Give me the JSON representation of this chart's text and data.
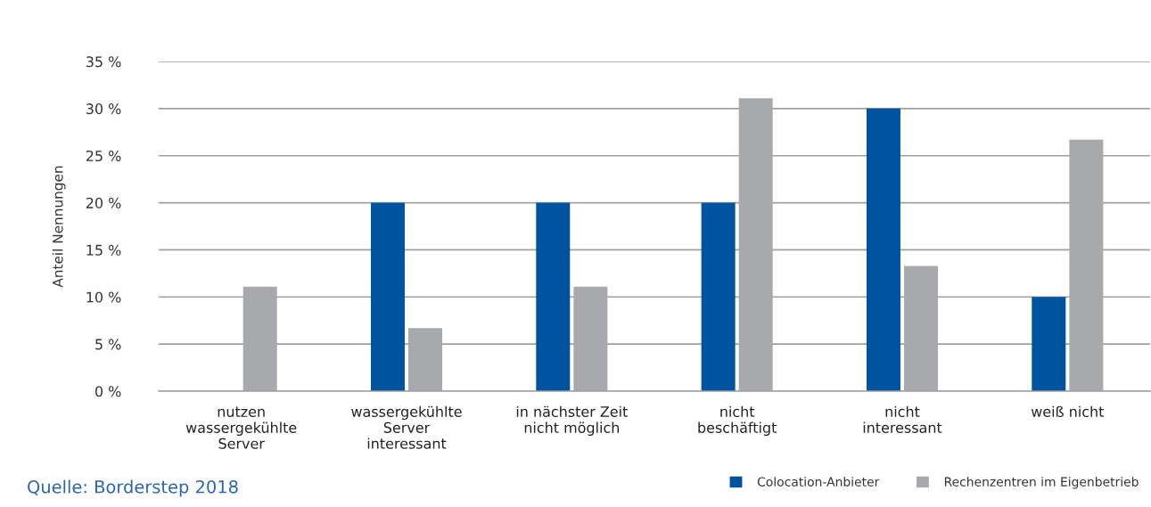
{
  "chart_data": {
    "type": "bar",
    "categories": [
      "nutzen\nwassergekühlte\nServer",
      "wassergekühlte\nServer\ninteressant",
      "in nächster Zeit\nnicht möglich",
      "nicht\nbeschäftigt",
      "nicht\ninteressant",
      "weiß nicht"
    ],
    "series": [
      {
        "name": "Colocation-Anbieter",
        "color": "#00539f",
        "values": [
          0,
          20,
          20,
          20,
          30,
          10
        ]
      },
      {
        "name": "Rechenzentren im Eigenbetrieb",
        "color": "#a8a9ad",
        "values": [
          11.1,
          6.7,
          11.1,
          31.1,
          13.3,
          26.7
        ]
      }
    ],
    "ylabel": "Anteil Nennungen",
    "ylim": [
      0,
      35
    ],
    "yticks": [
      {
        "value": 0,
        "label": "0 %"
      },
      {
        "value": 5,
        "label": "5 %"
      },
      {
        "value": 10,
        "label": "10 %"
      },
      {
        "value": 15,
        "label": "15 %"
      },
      {
        "value": 20,
        "label": "20 %"
      },
      {
        "value": 25,
        "label": "25 %"
      },
      {
        "value": 30,
        "label": "30 %"
      },
      {
        "value": 35,
        "label": "35 %"
      }
    ],
    "grid": "y",
    "legend": "bottom right",
    "annotations": [
      "Quelle: Borderstep 2018"
    ]
  }
}
